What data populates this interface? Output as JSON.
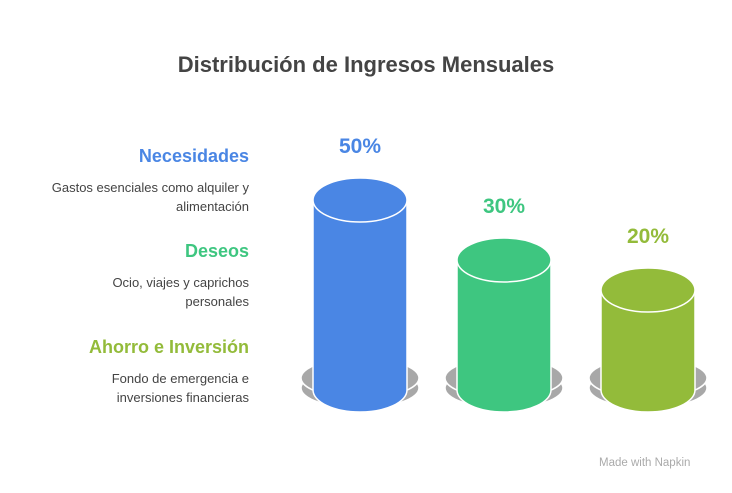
{
  "chart_data": {
    "type": "bar",
    "title": "Distribución de Ingresos Mensuales",
    "categories": [
      "Necesidades",
      "Deseos",
      "Ahorro e Inversión"
    ],
    "descriptions": [
      "Gastos esenciales como alquiler y alimentación",
      "Ocio, viajes y caprichos personales",
      "Fondo de emergencia e inversiones financieras"
    ],
    "values": [
      50,
      30,
      20
    ],
    "labels": [
      "50%",
      "30%",
      "20%"
    ],
    "colors": [
      "#4a86e4",
      "#3ec680",
      "#93bb3a"
    ],
    "base_color": "#a8a8a8"
  },
  "credit": "Made with Napkin"
}
